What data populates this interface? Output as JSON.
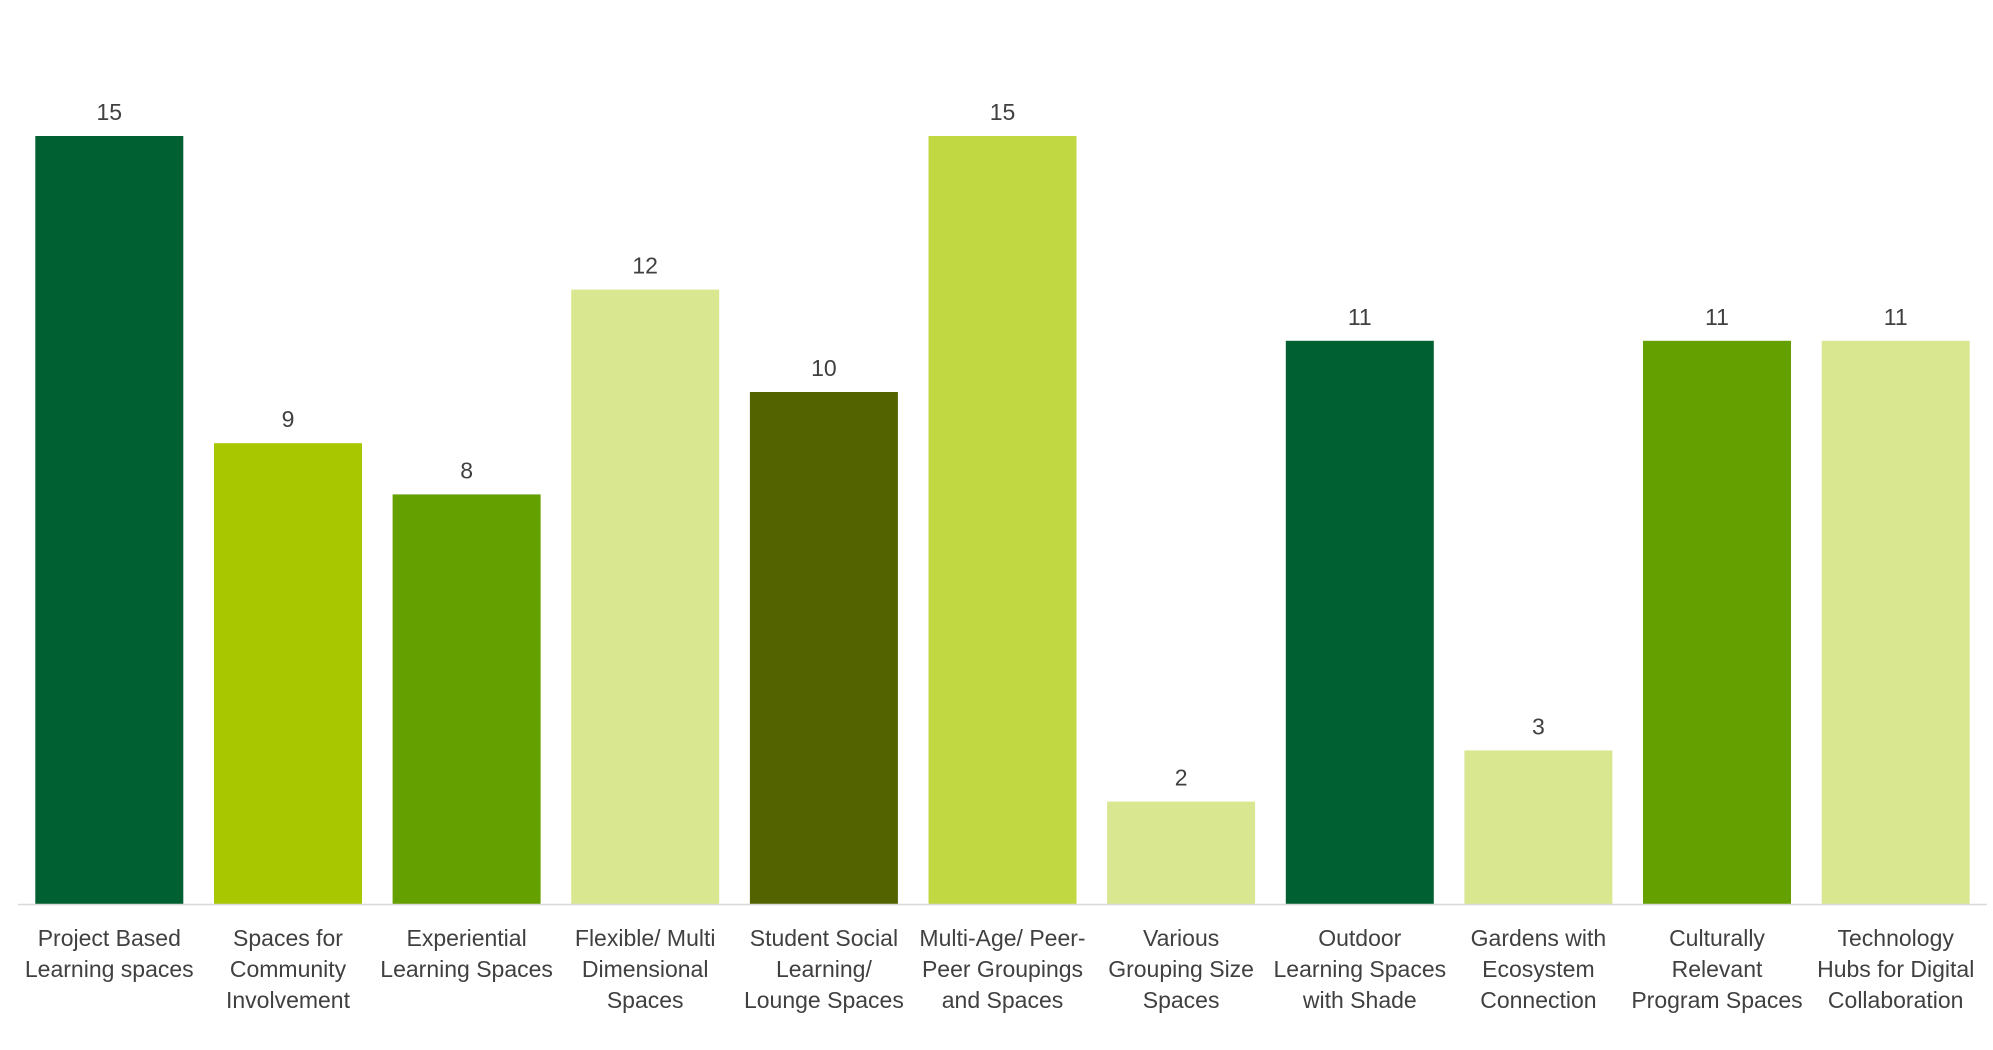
{
  "chart_data": {
    "type": "bar",
    "title": "",
    "xlabel": "",
    "ylabel": "",
    "ylim": [
      0,
      15
    ],
    "grid": false,
    "legend": "none",
    "categories": [
      [
        "Project Based",
        "Learning spaces"
      ],
      [
        "Spaces for",
        "Community",
        "Involvement"
      ],
      [
        "Experiential",
        "Learning Spaces"
      ],
      [
        "Flexible/ Multi",
        "Dimensional",
        "Spaces"
      ],
      [
        "Student Social",
        "Learning/",
        "Lounge Spaces"
      ],
      [
        "Multi-Age/ Peer-",
        "Peer Groupings",
        "and Spaces"
      ],
      [
        "Various",
        "Grouping Size",
        "Spaces"
      ],
      [
        "Outdoor",
        "Learning Spaces",
        "with Shade"
      ],
      [
        "Gardens with",
        "Ecosystem",
        "Connection"
      ],
      [
        "Culturally",
        "Relevant",
        "Program Spaces"
      ],
      [
        "Technology",
        "Hubs for Digital",
        "Collaboration"
      ]
    ],
    "values": [
      15,
      9,
      8,
      12,
      10,
      15,
      2,
      11,
      3,
      11,
      11
    ],
    "data_labels": [
      "15",
      "9",
      "8",
      "12",
      "10",
      "15",
      "2",
      "11",
      "3",
      "11",
      "11"
    ],
    "bar_colors": [
      "#006032",
      "#A8C700",
      "#64A000",
      "#DAE791",
      "#536300",
      "#C1D843",
      "#DAE791",
      "#006032",
      "#DAE791",
      "#64A000",
      "#DAE791"
    ],
    "axis_color": "#D9D9D9"
  }
}
